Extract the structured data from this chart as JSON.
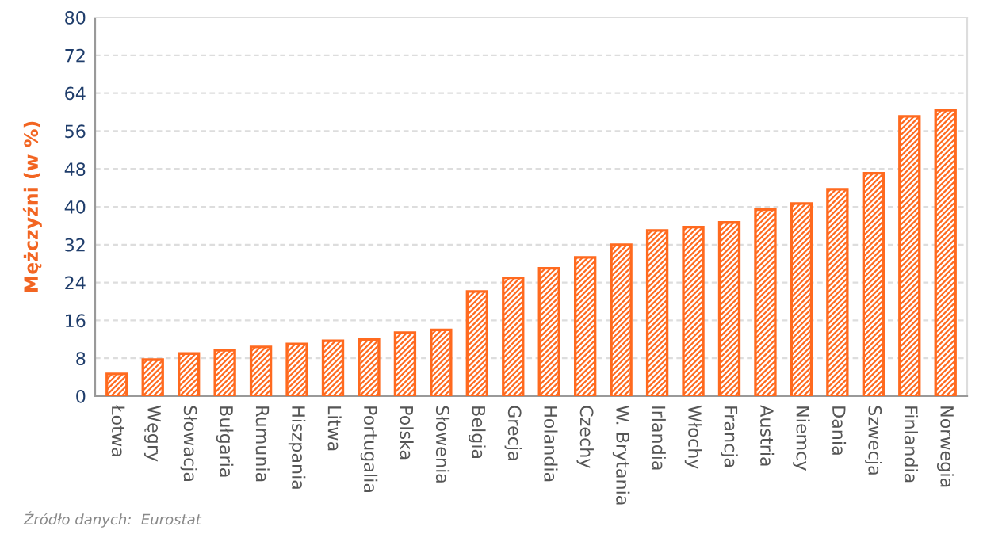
{
  "chart_data": {
    "type": "bar",
    "ylabel": "Mężczyźni (w %)",
    "categories": [
      "Łotwa",
      "Węgry",
      "Słowacja",
      "Bułgaria",
      "Rumunia",
      "Hiszpania",
      "Litwa",
      "Portugalia",
      "Polska",
      "Słowenia",
      "Belgia",
      "Grecja",
      "Holandia",
      "Czechy",
      "W. Brytania",
      "Irlandia",
      "Włochy",
      "Francja",
      "Austria",
      "Niemcy",
      "Dania",
      "Szwecja",
      "Finlandia",
      "Norwegia"
    ],
    "values": [
      4.7,
      7.7,
      9.0,
      9.7,
      10.4,
      11.0,
      11.7,
      12.0,
      13.4,
      14.0,
      22.1,
      25.0,
      27.0,
      29.3,
      32.0,
      35.0,
      35.7,
      36.7,
      39.4,
      40.7,
      43.7,
      47.1,
      59.1,
      60.4
    ],
    "color": "#ff6a1f",
    "ylim": [
      0,
      80
    ],
    "yticks": [
      0,
      8,
      16,
      24,
      32,
      40,
      48,
      56,
      64,
      72,
      80
    ],
    "grid": "y",
    "legend": false,
    "annotations": [
      "Źródło danych:  Eurostat"
    ]
  }
}
